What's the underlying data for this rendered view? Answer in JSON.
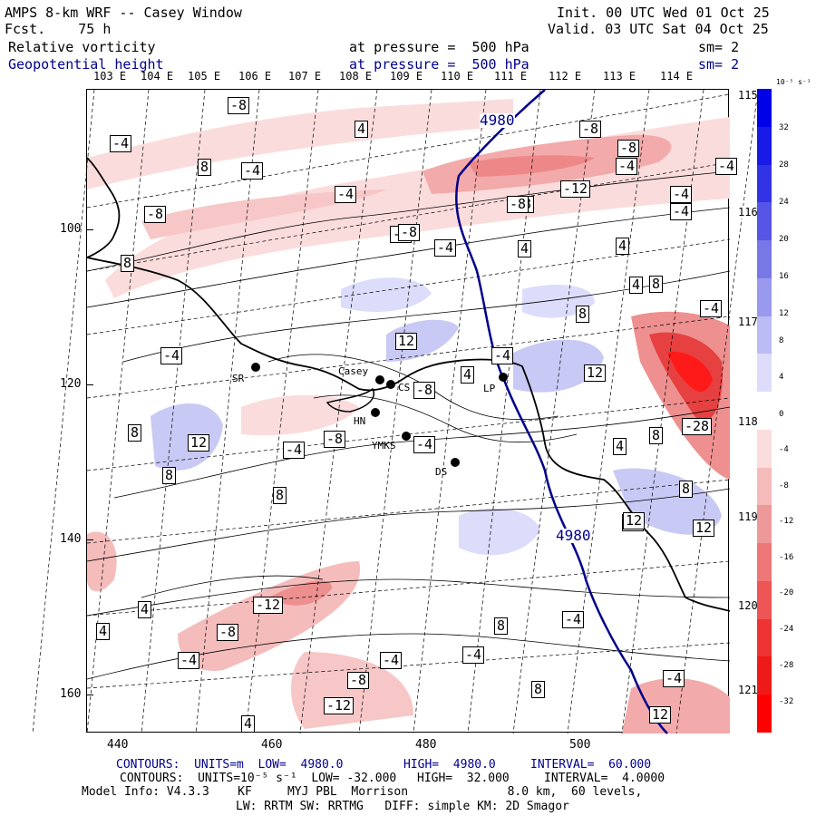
{
  "header": {
    "model_title": "AMPS 8-km WRF -- Casey Window",
    "fcst": "Fcst.    75 h",
    "init": "Init. 00 UTC Wed 01 Oct 25",
    "valid": "Valid. 03 UTC Sat 04 Oct 25",
    "field1": "Relative vorticity",
    "field1_level": "at pressure =  500 hPa",
    "field1_sm": "sm= 2",
    "field2": "Geopotential height",
    "field2_level": "at pressure =  500 hPa",
    "field2_sm": "sm= 2"
  },
  "longitude_labels": [
    "103 E",
    "104 E",
    "105 E",
    "106 E",
    "107 E",
    "108 E",
    "109 E",
    "110 E",
    "111 E",
    "112 E",
    "113 E",
    "114 E"
  ],
  "right_lon_labels": [
    "115 E",
    "116 E",
    "117 E",
    "118 E",
    "119 E",
    "120 E",
    "121 E"
  ],
  "y_ticks": [
    "100",
    "120",
    "140",
    "160"
  ],
  "x_ticks": [
    "440",
    "460",
    "480",
    "500"
  ],
  "colorbar": {
    "unit": "10⁻⁵ s⁻¹",
    "labels": [
      "32",
      "28",
      "24",
      "20",
      "16",
      "12",
      "8",
      "4",
      "0",
      "-4",
      "-8",
      "-12",
      "-16",
      "-20",
      "-24",
      "-28",
      "-32"
    ],
    "colors": [
      "#0000e6",
      "#1a1ae6",
      "#3333e6",
      "#5555e6",
      "#7777e6",
      "#9999ee",
      "#bbbbf5",
      "#ddddfb",
      "#ffffff",
      "#fbdddd",
      "#f5bbbb",
      "#ee9999",
      "#ee7777",
      "#ee5555",
      "#ee3333",
      "#ee1a1a",
      "#ff0000"
    ]
  },
  "stations": [
    {
      "name": "SR"
    },
    {
      "name": "Casey"
    },
    {
      "name": "CS"
    },
    {
      "name": "HN"
    },
    {
      "name": "YMKS"
    },
    {
      "name": "DS"
    },
    {
      "name": "LP"
    }
  ],
  "height_contour_labels": [
    "4980",
    "4980"
  ],
  "vorticity_labels": [
    "-8",
    "-4",
    "-8",
    "4",
    "-4",
    "8",
    "-4",
    "-4",
    "-8",
    "-8",
    "-12",
    "-8",
    "-4",
    "-4",
    "-8",
    "8",
    "-8",
    "-4",
    "4",
    "-4",
    "4",
    "4",
    "8",
    "-8",
    "12",
    "-4",
    "4",
    "-8",
    "12",
    "-4",
    "8",
    "-4",
    "-4",
    "12",
    "-8",
    "-28",
    "8",
    "-4",
    "12",
    "8",
    "4",
    "8",
    "8",
    "12",
    "8",
    "8",
    "12",
    "-12",
    "-8",
    "4",
    "-4",
    "-4",
    "-4",
    "-4",
    "-8",
    "4",
    "-12",
    "8",
    "-4",
    "4",
    "12"
  ],
  "footer": {
    "line1_a": "CONTOURS:  UNITS=m  LOW=  4980.0",
    "line1_b": "HIGH=  4980.0",
    "line1_c": "INTERVAL=  60.000",
    "line2_a": "CONTOURS:  UNITS=10⁻⁵ s⁻¹  LOW= -32.000",
    "line2_b": "HIGH=  32.000",
    "line2_c": "INTERVAL=  4.0000",
    "line3": "Model Info: V4.3.3    KF     MYJ PBL  Morrison              8.0 km,  60 levels,",
    "line4": "LW: RRTM SW: RRTMG   DIFF: simple KM: 2D Smagor"
  }
}
